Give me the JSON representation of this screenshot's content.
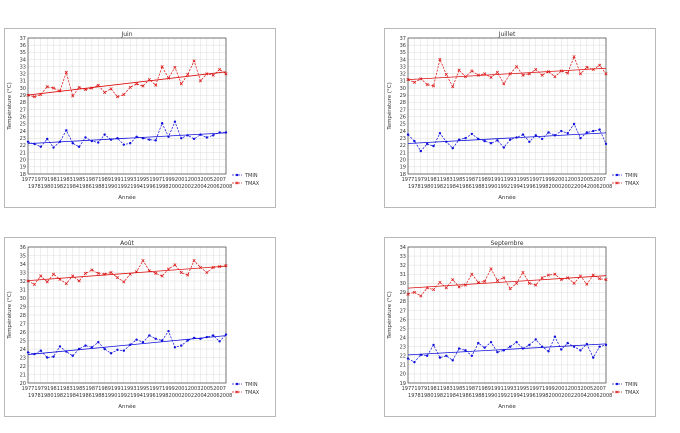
{
  "chart_data": [
    {
      "type": "line",
      "title": "Juin",
      "xlabel": "Année",
      "ylabel": "Température (°C)",
      "x": [
        1977,
        1978,
        1979,
        1980,
        1981,
        1982,
        1983,
        1984,
        1985,
        1986,
        1987,
        1988,
        1989,
        1990,
        1991,
        1992,
        1993,
        1994,
        1995,
        1996,
        1997,
        1998,
        1999,
        2000,
        2001,
        2002,
        2003,
        2004,
        2005,
        2006,
        2007,
        2008
      ],
      "ylim": [
        18,
        37
      ],
      "yticks": [
        18,
        19,
        20,
        21,
        22,
        23,
        24,
        25,
        26,
        27,
        28,
        29,
        30,
        31,
        32,
        33,
        34,
        35,
        36,
        37
      ],
      "xticks_top": [
        "1977",
        "1979",
        "1981",
        "1983",
        "1985",
        "1987",
        "1989",
        "1991",
        "1993",
        "1995",
        "1997",
        "1999",
        "2001",
        "2003",
        "2005",
        "2007"
      ],
      "xticks_bottom": [
        "1978",
        "1980",
        "1982",
        "1984",
        "1986",
        "1988",
        "1990",
        "1992",
        "1994",
        "1996",
        "1998",
        "2000",
        "2002",
        "2004",
        "2006",
        "2008"
      ],
      "grid": true,
      "legend": "right",
      "series": [
        {
          "name": "TMIN",
          "color": "#1010dd",
          "values": [
            22.5,
            22.2,
            21.8,
            22.9,
            21.7,
            22.5,
            24.1,
            22.3,
            21.8,
            23.1,
            22.6,
            22.4,
            23.5,
            22.8,
            23.0,
            22.1,
            22.3,
            23.2,
            23.0,
            22.8,
            22.7,
            25.1,
            23.2,
            25.3,
            23.0,
            23.4,
            22.9,
            23.5,
            23.1,
            23.4,
            23.8,
            23.8
          ]
        },
        {
          "name": "TMAX",
          "color": "#dd1010",
          "values": [
            29.0,
            28.8,
            29.1,
            30.2,
            30.0,
            29.6,
            32.2,
            28.9,
            30.1,
            29.8,
            30.0,
            30.4,
            29.4,
            29.9,
            28.8,
            29.1,
            30.1,
            30.6,
            30.3,
            31.2,
            30.4,
            33.0,
            31.4,
            32.9,
            30.6,
            31.9,
            33.8,
            31.0,
            32.0,
            31.8,
            32.6,
            32.0
          ]
        }
      ]
    },
    {
      "type": "line",
      "title": "Juillet",
      "xlabel": "Année",
      "ylabel": "Température (°C)",
      "x": [
        1977,
        1978,
        1979,
        1980,
        1981,
        1982,
        1983,
        1984,
        1985,
        1986,
        1987,
        1988,
        1989,
        1990,
        1991,
        1992,
        1993,
        1994,
        1995,
        1996,
        1997,
        1998,
        1999,
        2000,
        2001,
        2002,
        2003,
        2004,
        2005,
        2006,
        2007,
        2008
      ],
      "ylim": [
        18,
        37
      ],
      "yticks": [
        18,
        19,
        20,
        21,
        22,
        23,
        24,
        25,
        26,
        27,
        28,
        29,
        30,
        31,
        32,
        33,
        34,
        35,
        36,
        37
      ],
      "xticks_top": [
        "1977",
        "1979",
        "1981",
        "1983",
        "1985",
        "1987",
        "1989",
        "1991",
        "1993",
        "1995",
        "1997",
        "1999",
        "2001",
        "2003",
        "2005",
        "2007"
      ],
      "xticks_bottom": [
        "1978",
        "1980",
        "1982",
        "1984",
        "1986",
        "1988",
        "1990",
        "1992",
        "1994",
        "1996",
        "1998",
        "2000",
        "2002",
        "2004",
        "2006",
        "2008"
      ],
      "grid": true,
      "legend": "right",
      "series": [
        {
          "name": "TMIN",
          "color": "#1010dd",
          "values": [
            23.5,
            22.6,
            21.2,
            22.2,
            21.9,
            23.7,
            22.5,
            21.6,
            22.8,
            23.0,
            23.6,
            22.9,
            22.6,
            22.3,
            22.7,
            21.7,
            22.8,
            23.1,
            23.5,
            22.5,
            23.4,
            22.9,
            23.8,
            23.4,
            24.0,
            23.7,
            25.0,
            23.0,
            23.8,
            24.0,
            24.2,
            22.2
          ]
        },
        {
          "name": "TMAX",
          "color": "#dd1010",
          "values": [
            31.2,
            30.8,
            31.3,
            30.5,
            30.3,
            34.0,
            31.9,
            30.2,
            32.5,
            31.6,
            32.4,
            31.8,
            32.0,
            31.5,
            32.2,
            30.6,
            32.0,
            33.0,
            31.8,
            32.0,
            32.6,
            31.8,
            32.3,
            31.6,
            32.4,
            32.1,
            34.4,
            32.0,
            32.9,
            32.6,
            33.2,
            32.0
          ]
        }
      ]
    },
    {
      "type": "line",
      "title": "Août",
      "xlabel": "Année",
      "ylabel": "Température (°C)",
      "x": [
        1977,
        1978,
        1979,
        1980,
        1981,
        1982,
        1983,
        1984,
        1985,
        1986,
        1987,
        1988,
        1989,
        1990,
        1991,
        1992,
        1993,
        1994,
        1995,
        1996,
        1997,
        1998,
        1999,
        2000,
        2001,
        2002,
        2003,
        2004,
        2005,
        2006,
        2007,
        2008
      ],
      "ylim": [
        20,
        36
      ],
      "yticks": [
        20,
        21,
        22,
        23,
        24,
        25,
        26,
        27,
        28,
        29,
        30,
        31,
        32,
        33,
        34,
        35,
        36
      ],
      "xticks_top": [
        "1977",
        "1979",
        "1981",
        "1983",
        "1985",
        "1987",
        "1989",
        "1991",
        "1993",
        "1995",
        "1997",
        "1999",
        "2001",
        "2003",
        "2005",
        "2007"
      ],
      "xticks_bottom": [
        "1978",
        "1980",
        "1982",
        "1984",
        "1986",
        "1988",
        "1990",
        "1992",
        "1994",
        "1996",
        "1998",
        "2000",
        "2002",
        "2004",
        "2006",
        "2008"
      ],
      "grid": true,
      "legend": "right",
      "series": [
        {
          "name": "TMIN",
          "color": "#1010dd",
          "values": [
            23.6,
            23.4,
            23.8,
            23.0,
            23.1,
            24.3,
            23.7,
            23.2,
            24.0,
            24.4,
            24.2,
            24.8,
            24.0,
            23.5,
            23.9,
            23.8,
            24.5,
            25.1,
            24.8,
            25.6,
            25.2,
            25.0,
            26.1,
            24.2,
            24.4,
            25.0,
            25.3,
            25.2,
            25.4,
            25.6,
            24.9,
            25.7
          ]
        },
        {
          "name": "TMAX",
          "color": "#dd1010",
          "values": [
            32.0,
            31.6,
            32.6,
            31.9,
            32.8,
            32.2,
            31.7,
            32.6,
            32.0,
            32.9,
            33.3,
            32.9,
            32.8,
            33.0,
            32.4,
            31.9,
            32.8,
            33.1,
            34.4,
            33.2,
            32.9,
            32.6,
            33.4,
            33.9,
            33.0,
            32.7,
            34.4,
            33.6,
            33.0,
            33.6,
            33.7,
            33.8
          ]
        }
      ]
    },
    {
      "type": "line",
      "title": "Septembre",
      "xlabel": "Année",
      "ylabel": "Température (°C)",
      "x": [
        1977,
        1978,
        1979,
        1980,
        1981,
        1982,
        1983,
        1984,
        1985,
        1986,
        1987,
        1988,
        1989,
        1990,
        1991,
        1992,
        1993,
        1994,
        1995,
        1996,
        1997,
        1998,
        1999,
        2000,
        2001,
        2002,
        2003,
        2004,
        2005,
        2006,
        2007,
        2008
      ],
      "ylim": [
        19,
        34
      ],
      "yticks": [
        19,
        20,
        21,
        22,
        23,
        24,
        25,
        26,
        27,
        28,
        29,
        30,
        31,
        32,
        33,
        34
      ],
      "xticks_top": [
        "1977",
        "1979",
        "1981",
        "1983",
        "1985",
        "1987",
        "1989",
        "1991",
        "1993",
        "1995",
        "1997",
        "1999",
        "2001",
        "2003",
        "2005",
        "2007"
      ],
      "xticks_bottom": [
        "1978",
        "1980",
        "1982",
        "1984",
        "1986",
        "1988",
        "1990",
        "1992",
        "1994",
        "1996",
        "1998",
        "2000",
        "2002",
        "2004",
        "2006",
        "2008"
      ],
      "grid": true,
      "legend": "right",
      "series": [
        {
          "name": "TMIN",
          "color": "#1010dd",
          "values": [
            21.7,
            21.3,
            22.1,
            22.0,
            23.2,
            21.8,
            22.0,
            21.5,
            22.8,
            22.6,
            22.0,
            23.4,
            22.9,
            23.5,
            22.4,
            22.6,
            23.0,
            23.5,
            22.8,
            23.2,
            23.8,
            23.0,
            22.5,
            24.1,
            22.7,
            23.4,
            23.0,
            22.6,
            23.3,
            21.8,
            23.0,
            23.2
          ]
        },
        {
          "name": "TMAX",
          "color": "#dd1010",
          "values": [
            28.8,
            29.0,
            28.6,
            29.5,
            29.3,
            30.1,
            29.5,
            30.4,
            29.6,
            29.8,
            31.0,
            30.1,
            30.2,
            31.6,
            30.3,
            30.6,
            29.4,
            30.0,
            31.2,
            30.0,
            29.8,
            30.6,
            30.9,
            31.0,
            30.4,
            30.6,
            30.0,
            30.8,
            29.9,
            30.9,
            30.5,
            30.4
          ]
        }
      ]
    }
  ]
}
